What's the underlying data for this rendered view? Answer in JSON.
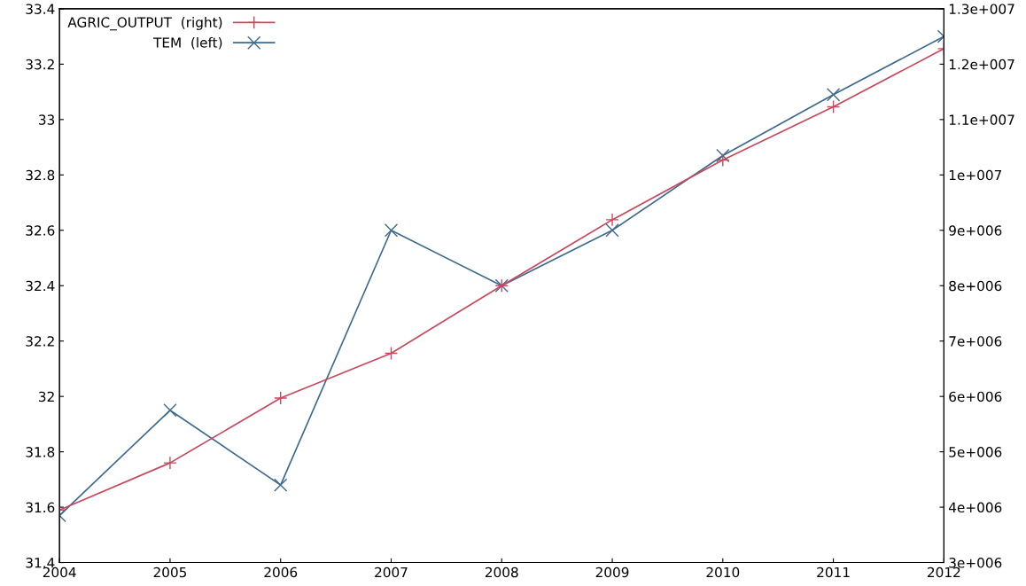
{
  "chart_data": {
    "type": "line",
    "x": [
      2004,
      2005,
      2006,
      2007,
      2008,
      2009,
      2010,
      2011,
      2012
    ],
    "xlim": [
      2004,
      2012
    ],
    "xticks": [
      2004,
      2005,
      2006,
      2007,
      2008,
      2009,
      2010,
      2011,
      2012
    ],
    "ylim": [
      31.4,
      33.4
    ],
    "yticks": [
      31.4,
      31.6,
      31.8,
      32,
      32.2,
      32.4,
      32.6,
      32.8,
      33,
      33.2,
      33.4
    ],
    "y2lim": [
      3000000,
      13000000
    ],
    "y2ticks": [
      {
        "value": 3000000,
        "label": "3e+006"
      },
      {
        "value": 4000000,
        "label": "4e+006"
      },
      {
        "value": 5000000,
        "label": "5e+006"
      },
      {
        "value": 6000000,
        "label": "6e+006"
      },
      {
        "value": 7000000,
        "label": "7e+006"
      },
      {
        "value": 8000000,
        "label": "8e+006"
      },
      {
        "value": 9000000,
        "label": "9e+006"
      },
      {
        "value": 10000000,
        "label": "1e+007"
      },
      {
        "value": 11000000,
        "label": "1.1e+007"
      },
      {
        "value": 12000000,
        "label": "1.2e+007"
      },
      {
        "value": 13000000,
        "label": "1.3e+007"
      }
    ],
    "series": [
      {
        "name": "AGRIC_OUTPUT  (right)",
        "color": "#c8485e",
        "axis": "y2",
        "marker": "plus",
        "values": [
          3950000,
          4800000,
          5970000,
          6780000,
          8000000,
          9190000,
          10270000,
          11230000,
          12280000
        ]
      },
      {
        "name": "TEM  (left)",
        "color": "#3d6a8e",
        "axis": "y",
        "marker": "cross",
        "values": [
          31.57,
          31.95,
          31.68,
          32.6,
          32.4,
          32.6,
          32.87,
          33.09,
          33.3
        ]
      }
    ],
    "legend": "top left",
    "grid": false,
    "line_style": "solid"
  }
}
